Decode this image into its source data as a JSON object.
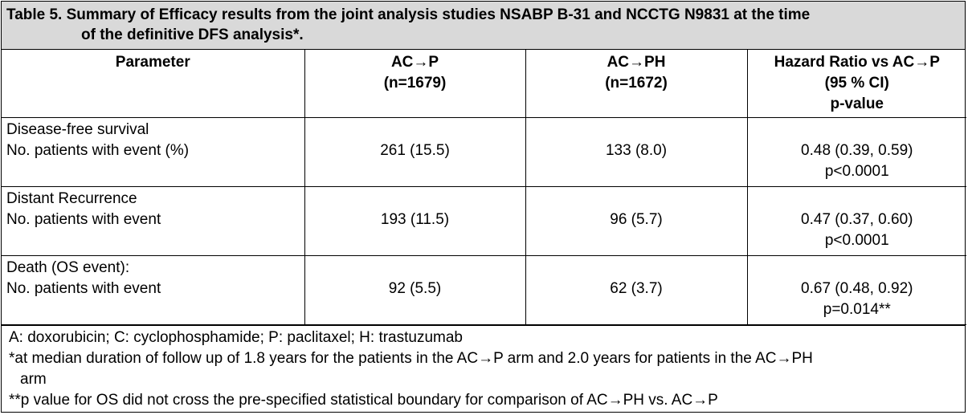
{
  "title": {
    "line1": "Table 5. Summary of Efficacy results from the joint analysis studies NSABP B-31 and NCCTG N9831 at the time",
    "line2": "of the definitive DFS analysis*."
  },
  "columns": [
    {
      "lines": [
        "Parameter"
      ]
    },
    {
      "lines": [
        "AC→P",
        "(n=1679)"
      ]
    },
    {
      "lines": [
        "AC→PH",
        "(n=1672)"
      ]
    },
    {
      "lines": [
        "Hazard Ratio vs AC→P",
        "(95 % CI)",
        "p-value"
      ]
    }
  ],
  "rows": [
    {
      "label": [
        "Disease-free survival",
        "No. patients with event (%)"
      ],
      "acp": "261 (15.5)",
      "acph": "133 (8.0)",
      "hr": [
        "0.48 (0.39, 0.59)",
        "p<0.0001"
      ]
    },
    {
      "label": [
        "Distant Recurrence",
        "No. patients with event"
      ],
      "acp": "193 (11.5)",
      "acph": "96 (5.7)",
      "hr": [
        "0.47 (0.37, 0.60)",
        "p<0.0001"
      ]
    },
    {
      "label": [
        "Death (OS event):",
        "No. patients with event"
      ],
      "acp": "92 (5.5)",
      "acph": "62 (3.7)",
      "hr": [
        "0.67 (0.48, 0.92)",
        "p=0.014**"
      ]
    }
  ],
  "notes": {
    "abbrev": "A: doxorubicin; C: cyclophosphamide; P: paclitaxel; H: trastuzumab",
    "star1_line1": "*at median duration of follow up of 1.8 years for the patients in the AC→P arm and 2.0 years for patients in the AC→PH",
    "star1_line2": "arm",
    "star2": "**p value for OS did not cross the pre-specified statistical boundary for comparison of AC→PH vs. AC→P"
  }
}
